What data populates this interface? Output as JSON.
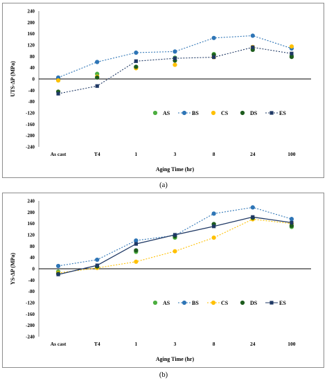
{
  "chart_data": [
    {
      "type": "line",
      "panel_label": "(a)",
      "ylabel": "UTS-ΔP (MPa)",
      "xlabel": "Aging Time (hr)",
      "categories": [
        "As cast",
        "T4",
        "1",
        "3",
        "8",
        "24",
        "100"
      ],
      "ylim": [
        -240,
        240
      ],
      "yticks": [
        "240",
        "200",
        "160",
        "120",
        "80",
        "40",
        "0",
        "-40",
        "-80",
        "-120",
        "-160",
        "-200",
        "-240"
      ],
      "grid": false,
      "legend": "lower-right",
      "series": [
        {
          "name": "AS",
          "color": "#4cae3f",
          "marker": "circle",
          "line": "none",
          "values": [
            -5,
            18,
            40,
            75,
            88,
            108,
            82
          ]
        },
        {
          "name": "BS",
          "color": "#2e75b6",
          "marker": "circle",
          "line": "dotted",
          "values": [
            5,
            60,
            93,
            97,
            145,
            153,
            108
          ]
        },
        {
          "name": "CS",
          "color": "#ffc000",
          "marker": "circle",
          "line": "none",
          "values": [
            -5,
            8,
            38,
            50,
            77,
            113,
            115
          ]
        },
        {
          "name": "DS",
          "color": "#1e5c1e",
          "marker": "circle",
          "line": "none",
          "values": [
            -45,
            5,
            43,
            65,
            85,
            103,
            78
          ]
        },
        {
          "name": "ES",
          "color": "#1f3864",
          "marker": "square",
          "line": "dotted",
          "values": [
            -52,
            -25,
            63,
            73,
            77,
            112,
            90
          ]
        }
      ]
    },
    {
      "type": "line",
      "panel_label": "(b)",
      "ylabel": "YS-ΔP (MPa)",
      "xlabel": "Aging Time (hr)",
      "categories": [
        "As cast",
        "T4",
        "1",
        "3",
        "8",
        "24",
        "100"
      ],
      "ylim": [
        -240,
        240
      ],
      "yticks": [
        "240",
        "200",
        "160",
        "120",
        "80",
        "40",
        "0",
        "-40",
        "-80",
        "-120",
        "-160",
        "-200",
        "-240"
      ],
      "grid": false,
      "legend": "lower-right",
      "series": [
        {
          "name": "AS",
          "color": "#4cae3f",
          "marker": "circle",
          "line": "none",
          "values": [
            -10,
            5,
            60,
            110,
            155,
            178,
            148
          ]
        },
        {
          "name": "BS",
          "color": "#2e75b6",
          "marker": "circle",
          "line": "dotted",
          "values": [
            10,
            32,
            100,
            118,
            195,
            217,
            176
          ]
        },
        {
          "name": "CS",
          "color": "#ffc000",
          "marker": "circle",
          "line": "dotted",
          "values": [
            -15,
            3,
            25,
            62,
            110,
            175,
            160
          ]
        },
        {
          "name": "DS",
          "color": "#1e5c1e",
          "marker": "circle",
          "line": "none",
          "values": [
            -18,
            8,
            65,
            115,
            158,
            180,
            152
          ]
        },
        {
          "name": "ES",
          "color": "#1f3864",
          "marker": "square",
          "line": "solid",
          "values": [
            -20,
            12,
            88,
            120,
            150,
            183,
            163
          ]
        }
      ]
    }
  ]
}
